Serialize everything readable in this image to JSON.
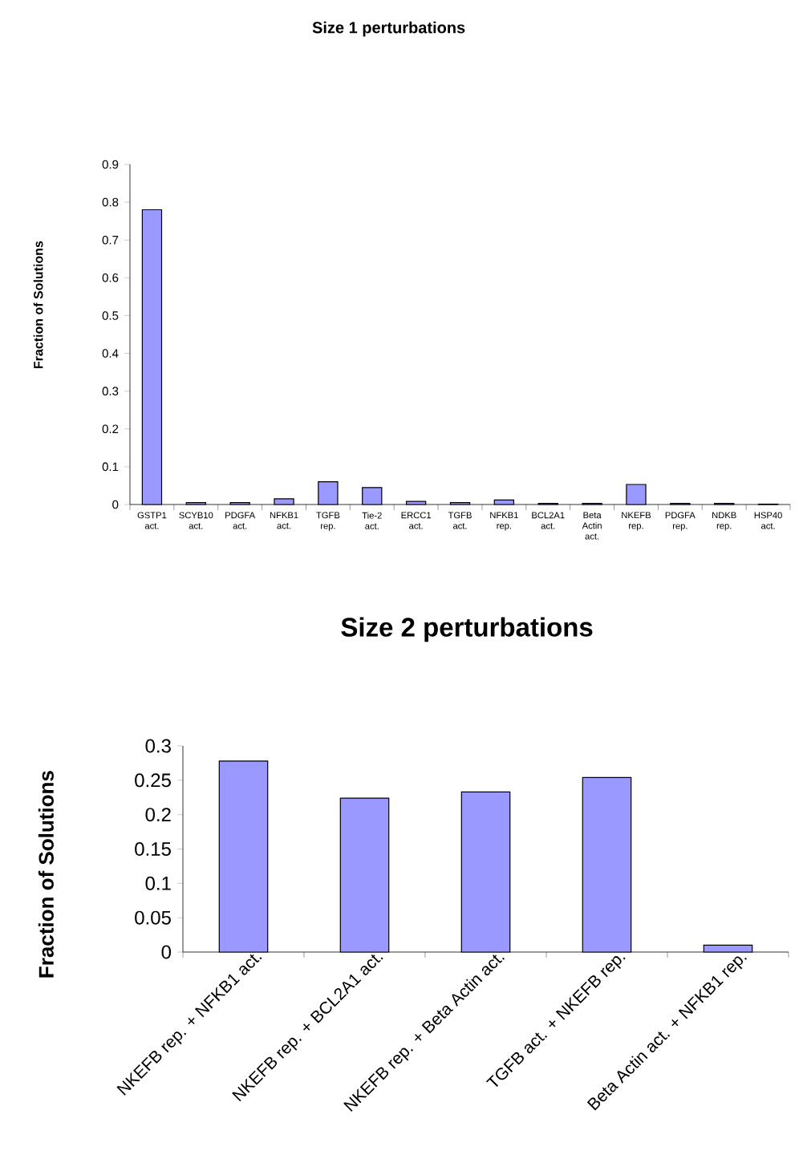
{
  "chart_data": [
    {
      "type": "bar",
      "title": "Size 1 perturbations",
      "ylabel": "Fraction of Solutions",
      "categories": [
        "GSTP1 act.",
        "SCYB10 act.",
        "PDGFA act.",
        "NFKB1 act.",
        "TGFB rep.",
        "Tie-2 act.",
        "ERCC1 act.",
        "TGFB act.",
        "NFKB1 rep.",
        "BCL2A1 act.",
        "Beta Actin act.",
        "NKEFB rep.",
        "PDGFA rep.",
        "NDKB rep.",
        "HSP40 act."
      ],
      "values": [
        0.78,
        0.005,
        0.005,
        0.015,
        0.06,
        0.045,
        0.008,
        0.005,
        0.012,
        0.003,
        0.003,
        0.053,
        0.003,
        0.003,
        0.001
      ],
      "color": "#9999ff",
      "ylim": [
        0,
        0.9
      ],
      "yticks": [
        0,
        0.1,
        0.2,
        0.3,
        0.4,
        0.5,
        0.6,
        0.7,
        0.8,
        0.9
      ]
    },
    {
      "type": "bar",
      "title": "Size 2 perturbations",
      "ylabel": "Fraction of Solutions",
      "categories": [
        "NKEFB rep. + NFKB1 act.",
        "NKEFB rep. + BCL2A1 act.",
        "NKEFB rep. + Beta Actin act.",
        "TGFB act. + NKEFB rep.",
        "Beta Actin act. + NFKB1 rep."
      ],
      "values": [
        0.278,
        0.224,
        0.233,
        0.254,
        0.01
      ],
      "color": "#9999ff",
      "ylim": [
        0,
        0.3
      ],
      "yticks": [
        0,
        0.05,
        0.1,
        0.15,
        0.2,
        0.25,
        0.3
      ]
    }
  ]
}
